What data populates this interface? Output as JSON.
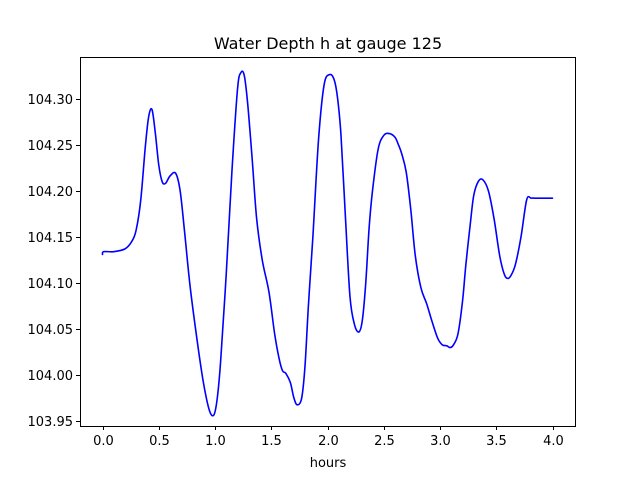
{
  "chart_data": {
    "type": "line",
    "title": "Water Depth h at gauge 125",
    "xlabel": "hours",
    "ylabel": "",
    "xlim": [
      -0.2,
      4.2
    ],
    "ylim": [
      103.945,
      104.345
    ],
    "xticks": [
      0.0,
      0.5,
      1.0,
      1.5,
      2.0,
      2.5,
      3.0,
      3.5,
      4.0
    ],
    "xtick_labels": [
      "0.0",
      "0.5",
      "1.0",
      "1.5",
      "2.0",
      "2.5",
      "3.0",
      "3.5",
      "4.0"
    ],
    "yticks": [
      103.95,
      104.0,
      104.05,
      104.1,
      104.15,
      104.2,
      104.25,
      104.3
    ],
    "ytick_labels": [
      "103.95",
      "104.00",
      "104.05",
      "104.10",
      "104.15",
      "104.20",
      "104.25",
      "104.30"
    ],
    "grid": false,
    "series": [
      {
        "color": "#0000ff",
        "x": [
          0.0,
          0.01,
          0.1,
          0.2,
          0.26,
          0.3,
          0.34,
          0.38,
          0.41,
          0.44,
          0.47,
          0.5,
          0.53,
          0.56,
          0.6,
          0.65,
          0.69,
          0.73,
          0.78,
          0.85,
          0.9,
          0.95,
          0.99,
          1.02,
          1.05,
          1.1,
          1.15,
          1.2,
          1.23,
          1.26,
          1.29,
          1.33,
          1.37,
          1.42,
          1.48,
          1.53,
          1.57,
          1.6,
          1.63,
          1.67,
          1.7,
          1.73,
          1.77,
          1.8,
          1.83,
          1.87,
          1.92,
          1.97,
          2.02,
          2.06,
          2.09,
          2.12,
          2.16,
          2.2,
          2.24,
          2.28,
          2.31,
          2.34,
          2.37,
          2.4,
          2.45,
          2.5,
          2.55,
          2.6,
          2.63,
          2.66,
          2.7,
          2.74,
          2.78,
          2.83,
          2.88,
          2.93,
          2.98,
          3.02,
          3.06,
          3.09,
          3.12,
          3.16,
          3.2,
          3.23,
          3.27,
          3.3,
          3.34,
          3.38,
          3.43,
          3.48,
          3.53,
          3.57,
          3.6,
          3.63,
          3.67,
          3.72,
          3.77,
          3.81,
          3.84,
          3.87,
          3.9,
          3.95,
          4.0
        ],
        "y": [
          104.131,
          104.134,
          104.134,
          104.137,
          104.145,
          104.158,
          104.19,
          104.247,
          104.28,
          104.288,
          104.262,
          104.228,
          104.21,
          104.208,
          104.216,
          104.219,
          104.2,
          104.155,
          104.095,
          104.03,
          103.99,
          103.962,
          103.957,
          103.975,
          104.015,
          104.11,
          104.22,
          104.31,
          104.328,
          104.325,
          104.295,
          104.235,
          104.17,
          104.125,
          104.09,
          104.045,
          104.018,
          104.005,
          104.002,
          103.992,
          103.976,
          103.968,
          103.975,
          104.01,
          104.075,
          104.15,
          104.255,
          104.315,
          104.326,
          104.32,
          104.3,
          104.26,
          104.17,
          104.085,
          104.055,
          104.047,
          104.06,
          104.1,
          104.16,
          104.2,
          104.245,
          104.26,
          104.262,
          104.258,
          104.25,
          104.24,
          104.22,
          104.18,
          104.13,
          104.095,
          104.078,
          104.058,
          104.04,
          104.033,
          104.032,
          104.03,
          104.033,
          104.045,
          104.08,
          104.12,
          104.165,
          104.195,
          104.21,
          104.212,
          104.2,
          104.17,
          104.13,
          104.11,
          104.105,
          104.108,
          104.12,
          104.15,
          104.19,
          104.192,
          104.192,
          104.192,
          104.192,
          104.192,
          104.192
        ]
      }
    ]
  }
}
